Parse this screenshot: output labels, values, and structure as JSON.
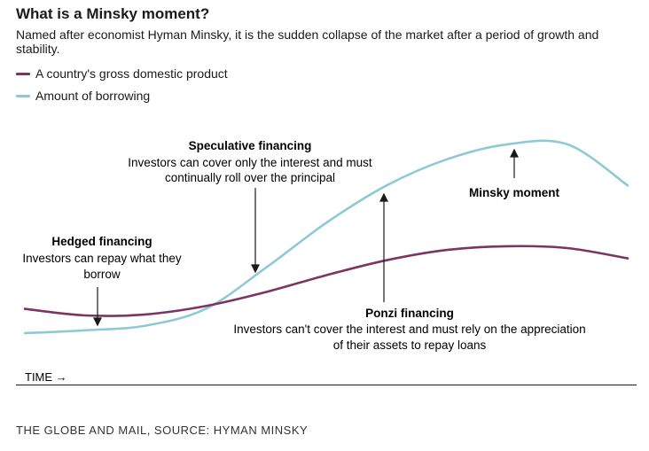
{
  "title": "What is a Minsky moment?",
  "subtitle": "Named after economist Hyman Minsky, it is the sudden collapse of the market after a period of growth and stability.",
  "legend": {
    "gdp": "A country's gross domestic product",
    "borrowing": "Amount of borrowing"
  },
  "colors": {
    "gdp": "#7b3564",
    "borrowing": "#8ecad6",
    "text": "#1a1a1a"
  },
  "xaxis_label": "TIME →",
  "source": "THE GLOBE AND MAIL, SOURCE: HYMAN MINSKY",
  "annotations": {
    "hedged": {
      "title": "Hedged financing",
      "line1": "Investors can repay what they",
      "line2": "borrow"
    },
    "speculative": {
      "title": "Speculative financing",
      "line1": "Investors can cover only the interest and must",
      "line2": "continually roll over the principal"
    },
    "ponzi": {
      "title": "Ponzi financing",
      "line1": "Investors can't cover the interest and must rely on the appreciation",
      "line2": "of their assets to repay loans"
    },
    "minsky": {
      "title": "Minsky moment"
    }
  },
  "chart_data": {
    "type": "line",
    "title": "What is a Minsky moment?",
    "xlabel": "TIME",
    "ylabel": "",
    "xlim": [
      0,
      100
    ],
    "ylim": [
      0,
      100
    ],
    "axes_visible": false,
    "x": [
      0,
      10,
      20,
      30,
      40,
      50,
      60,
      70,
      80,
      90,
      100
    ],
    "series": [
      {
        "name": "A country's gross domestic product",
        "values": [
          13,
          9.5,
          10,
          14.5,
          22,
          31,
          39,
          44.5,
          46.5,
          45.5,
          40
        ]
      },
      {
        "name": "Amount of borrowing",
        "values": [
          0,
          1.5,
          4,
          13,
          35,
          59,
          79,
          93,
          101,
          101,
          79
        ]
      }
    ],
    "annotations": [
      {
        "label": "Hedged financing",
        "x": 13,
        "y": 6
      },
      {
        "label": "Speculative financing",
        "x": 38,
        "y": 31
      },
      {
        "label": "Ponzi financing",
        "x": 59,
        "y": 73
      },
      {
        "label": "Minsky moment",
        "x": 82,
        "y": 101
      }
    ]
  }
}
